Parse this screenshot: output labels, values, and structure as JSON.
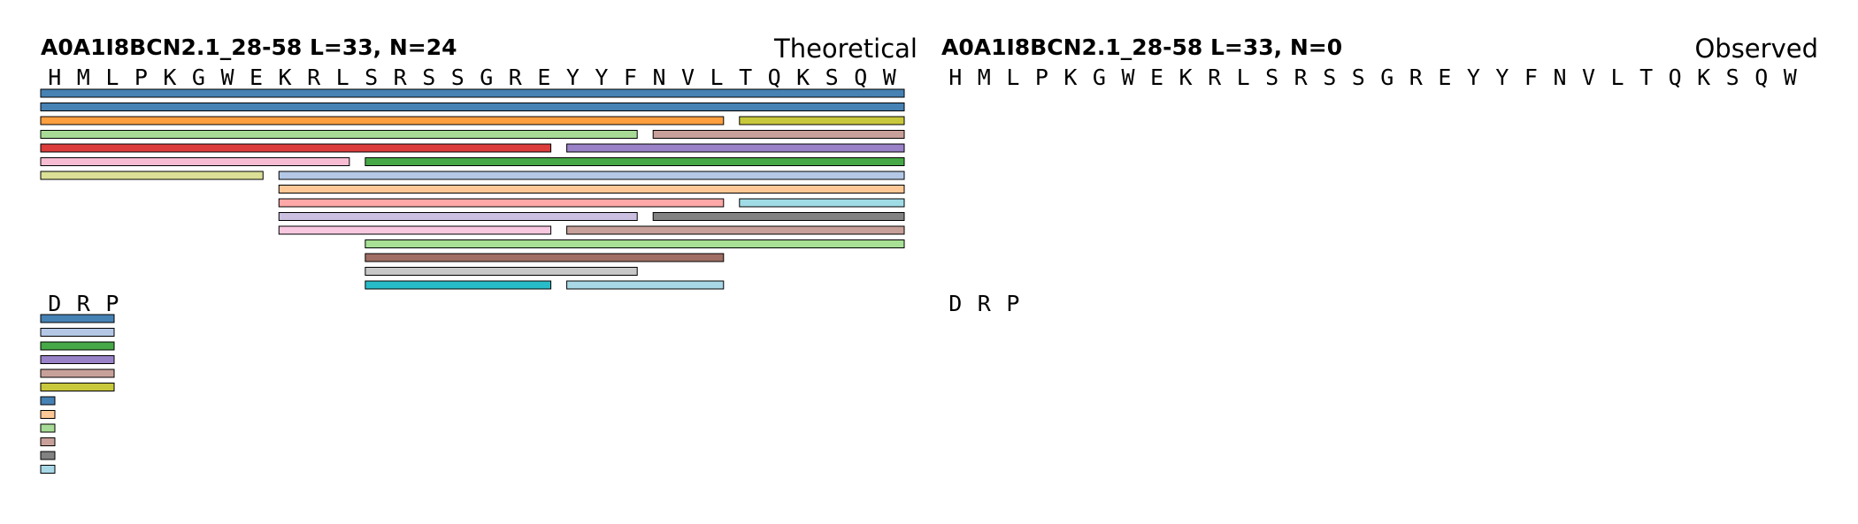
{
  "panels": [
    {
      "title": "A0A1I8BCN2.1_28-58  L=33, N=24",
      "kind": "Theoretical",
      "sequence": [
        "H",
        "M",
        "L",
        "P",
        "K",
        "G",
        "W",
        "E",
        "K",
        "R",
        "L",
        "S",
        "R",
        "S",
        "S",
        "G",
        "R",
        "E",
        "Y",
        "Y",
        "F",
        "N",
        "V",
        "L",
        "T",
        "Q",
        "K",
        "S",
        "Q",
        "W"
      ],
      "rows": [
        [
          {
            "start": 0,
            "end": 30,
            "color": "#4682b4"
          }
        ],
        [
          {
            "start": 0,
            "end": 30,
            "color": "#4682b4"
          }
        ],
        [
          {
            "start": 0,
            "end": 24,
            "color": "#ff9f40"
          },
          {
            "start": 24,
            "end": 30,
            "color": "#c8c83c"
          }
        ],
        [
          {
            "start": 0,
            "end": 21,
            "color": "#a8dc96"
          },
          {
            "start": 21,
            "end": 30,
            "color": "#c8a09a"
          }
        ],
        [
          {
            "start": 0,
            "end": 18,
            "color": "#dc3c3c"
          },
          {
            "start": 18,
            "end": 30,
            "color": "#9a82c8"
          }
        ],
        [
          {
            "start": 0,
            "end": 11,
            "color": "#f8bcd2"
          },
          {
            "start": 11,
            "end": 30,
            "color": "#46a846"
          }
        ],
        [
          {
            "start": 0,
            "end": 8,
            "color": "#dce096"
          },
          {
            "start": 8,
            "end": 30,
            "color": "#b4c8e6"
          }
        ],
        [
          {
            "start": 8,
            "end": 30,
            "color": "#ffc896"
          }
        ],
        [
          {
            "start": 8,
            "end": 24,
            "color": "#ffa8a8"
          },
          {
            "start": 24,
            "end": 30,
            "color": "#a0dce6"
          }
        ],
        [
          {
            "start": 8,
            "end": 21,
            "color": "#ccc0e0"
          },
          {
            "start": 21,
            "end": 30,
            "color": "#828282"
          }
        ],
        [
          {
            "start": 8,
            "end": 18,
            "color": "#f8c8e0"
          },
          {
            "start": 18,
            "end": 30,
            "color": "#c8a09a"
          }
        ],
        [
          {
            "start": 11,
            "end": 30,
            "color": "#a8e096"
          }
        ],
        [
          {
            "start": 11,
            "end": 24,
            "color": "#a06e64"
          }
        ],
        [
          {
            "start": 11,
            "end": 21,
            "color": "#c8c8c8"
          }
        ],
        [
          {
            "start": 11,
            "end": 18,
            "color": "#28bcc8"
          },
          {
            "start": 18,
            "end": 24,
            "color": "#a8d8e6"
          }
        ]
      ],
      "tail_sequence": [
        "D",
        "R",
        "P"
      ],
      "tail_rows": [
        [
          {
            "start": 0,
            "end": 3,
            "color": "#4682b4"
          }
        ],
        [
          {
            "start": 0,
            "end": 3,
            "color": "#b4c8e6"
          }
        ],
        [
          {
            "start": 0,
            "end": 3,
            "color": "#46a846"
          }
        ],
        [
          {
            "start": 0,
            "end": 3,
            "color": "#9a82c8"
          }
        ],
        [
          {
            "start": 0,
            "end": 3,
            "color": "#c8a09a"
          }
        ],
        [
          {
            "start": 0,
            "end": 3,
            "color": "#c8c83c"
          }
        ],
        [
          {
            "start": 0,
            "end": 0.6,
            "color": "#4682b4"
          }
        ],
        [
          {
            "start": 0,
            "end": 0.6,
            "color": "#ffc896"
          }
        ],
        [
          {
            "start": 0,
            "end": 0.6,
            "color": "#a8dc96"
          }
        ],
        [
          {
            "start": 0,
            "end": 0.6,
            "color": "#c8a09a"
          }
        ],
        [
          {
            "start": 0,
            "end": 0.6,
            "color": "#828282"
          }
        ],
        [
          {
            "start": 0,
            "end": 0.6,
            "color": "#a8d8e6"
          }
        ]
      ]
    },
    {
      "title": "A0A1I8BCN2.1_28-58  L=33, N=0",
      "kind": "Observed",
      "sequence": [
        "H",
        "M",
        "L",
        "P",
        "K",
        "G",
        "W",
        "E",
        "K",
        "R",
        "L",
        "S",
        "R",
        "S",
        "S",
        "G",
        "R",
        "E",
        "Y",
        "Y",
        "F",
        "N",
        "V",
        "L",
        "T",
        "Q",
        "K",
        "S",
        "Q",
        "W"
      ],
      "rows": [],
      "tail_sequence": [
        "D",
        "R",
        "P"
      ],
      "tail_rows": []
    }
  ]
}
